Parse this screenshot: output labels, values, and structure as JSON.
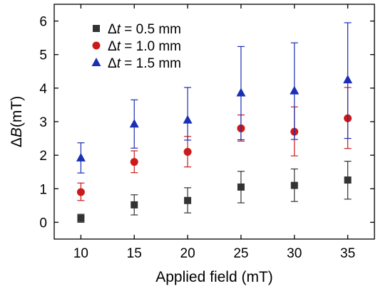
{
  "chart_data": {
    "type": "scatter",
    "xlabel": "Applied field (mT)",
    "ylabel_symbol": "B",
    "ylabel_unit": "(mT)",
    "xlim": [
      7.5,
      37.5
    ],
    "ylim": [
      -0.5,
      6.5
    ],
    "xticks": [
      10,
      15,
      20,
      25,
      30,
      35
    ],
    "yticks": [
      0,
      1,
      2,
      3,
      4,
      5,
      6
    ],
    "grid": false,
    "legend_position": "top-left",
    "x": [
      10,
      15,
      20,
      25,
      30,
      35
    ],
    "series": [
      {
        "name": "Δt = 0.5 mm",
        "legend_var": "t",
        "legend_value": " = 0.5 mm",
        "marker": "square",
        "color": "#333333",
        "values": [
          0.12,
          0.52,
          0.65,
          1.05,
          1.1,
          1.26
        ],
        "err_low": [
          0.12,
          0.3,
          0.37,
          0.47,
          0.48,
          0.57
        ],
        "err_high": [
          0.12,
          0.3,
          0.38,
          0.47,
          0.49,
          0.56
        ]
      },
      {
        "name": "Δt = 1.0 mm",
        "legend_var": "t",
        "legend_value": " = 1.0 mm",
        "marker": "circle",
        "color": "#cc1a1a",
        "values": [
          0.9,
          1.8,
          2.1,
          2.8,
          2.7,
          3.1
        ],
        "err_low": [
          0.25,
          0.32,
          0.45,
          0.38,
          0.72,
          0.9
        ],
        "err_high": [
          0.27,
          0.33,
          0.46,
          0.4,
          0.74,
          0.92
        ]
      },
      {
        "name": "Δt = 1.5 mm",
        "legend_var": "t",
        "legend_value": " = 1.5 mm",
        "marker": "triangle",
        "color": "#1a2fb3",
        "values": [
          1.92,
          2.93,
          3.05,
          3.86,
          3.92,
          4.25
        ],
        "err_low": [
          0.45,
          0.72,
          0.6,
          1.4,
          1.45,
          1.75
        ],
        "err_high": [
          0.45,
          0.72,
          0.97,
          1.38,
          1.43,
          1.7
        ]
      }
    ]
  }
}
